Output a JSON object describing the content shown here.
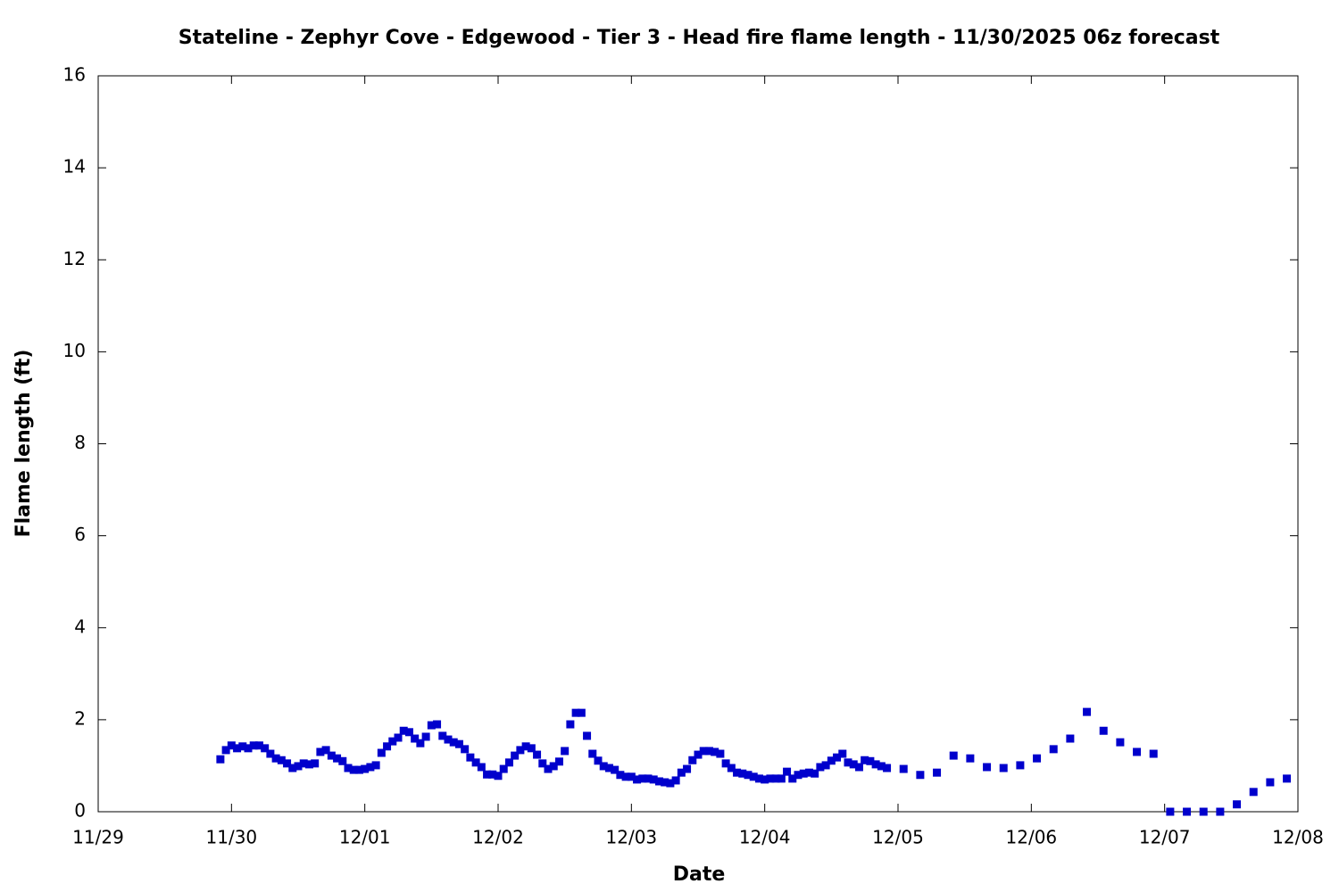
{
  "chart_data": {
    "type": "scatter",
    "title": "Stateline - Zephyr Cove - Edgewood - Tier 3 - Head fire flame length - 11/30/2025 06z forecast",
    "x_label": "Date",
    "y_label": "Flame length (ft)",
    "color": "#0000cc",
    "xlim": [
      0,
      216
    ],
    "xticks": [
      {
        "value": 0,
        "label": "11/29"
      },
      {
        "value": 24,
        "label": "11/30"
      },
      {
        "value": 48,
        "label": "12/01"
      },
      {
        "value": 72,
        "label": "12/02"
      },
      {
        "value": 96,
        "label": "12/03"
      },
      {
        "value": 120,
        "label": "12/04"
      },
      {
        "value": 144,
        "label": "12/05"
      },
      {
        "value": 168,
        "label": "12/06"
      },
      {
        "value": 192,
        "label": "12/07"
      },
      {
        "value": 216,
        "label": "12/08"
      }
    ],
    "ylim": [
      0,
      16
    ],
    "yticks": [
      0,
      2,
      4,
      6,
      8,
      10,
      12,
      14,
      16
    ],
    "x": [
      22,
      23,
      24,
      25,
      26,
      27,
      28,
      29,
      30,
      31,
      32,
      33,
      34,
      35,
      36,
      37,
      38,
      39,
      40,
      41,
      42,
      43,
      44,
      45,
      46,
      47,
      48,
      49,
      50,
      51,
      52,
      53,
      54,
      55,
      56,
      57,
      58,
      59,
      60,
      61,
      62,
      63,
      64,
      65,
      66,
      67,
      68,
      69,
      70,
      71,
      72,
      73,
      74,
      75,
      76,
      77,
      78,
      79,
      80,
      81,
      82,
      83,
      84,
      85,
      86,
      87,
      88,
      89,
      90,
      91,
      92,
      93,
      94,
      95,
      96,
      97,
      98,
      99,
      100,
      101,
      102,
      103,
      104,
      105,
      106,
      107,
      108,
      109,
      110,
      111,
      112,
      113,
      114,
      115,
      116,
      117,
      118,
      119,
      120,
      121,
      122,
      123,
      124,
      125,
      126,
      127,
      128,
      129,
      130,
      131,
      132,
      133,
      134,
      135,
      136,
      137,
      138,
      139,
      140,
      141,
      142,
      145,
      148,
      151,
      154,
      157,
      160,
      163,
      166,
      169,
      172,
      175,
      178,
      181,
      184,
      187,
      190,
      193,
      196,
      199,
      202,
      205,
      208,
      211,
      214
    ],
    "values": [
      1.14,
      1.34,
      1.44,
      1.38,
      1.42,
      1.38,
      1.44,
      1.44,
      1.38,
      1.26,
      1.16,
      1.12,
      1.05,
      0.95,
      0.99,
      1.05,
      1.03,
      1.05,
      1.3,
      1.34,
      1.22,
      1.16,
      1.1,
      0.95,
      0.91,
      0.91,
      0.93,
      0.97,
      1.01,
      1.28,
      1.42,
      1.53,
      1.61,
      1.76,
      1.73,
      1.59,
      1.49,
      1.63,
      1.88,
      1.9,
      1.65,
      1.57,
      1.51,
      1.47,
      1.36,
      1.18,
      1.07,
      0.97,
      0.81,
      0.81,
      0.78,
      0.93,
      1.07,
      1.22,
      1.34,
      1.42,
      1.38,
      1.24,
      1.05,
      0.93,
      0.99,
      1.09,
      1.32,
      1.9,
      2.15,
      2.15,
      1.65,
      1.26,
      1.11,
      0.99,
      0.95,
      0.91,
      0.8,
      0.76,
      0.76,
      0.7,
      0.72,
      0.72,
      0.7,
      0.66,
      0.64,
      0.62,
      0.68,
      0.85,
      0.93,
      1.12,
      1.24,
      1.32,
      1.32,
      1.3,
      1.26,
      1.05,
      0.95,
      0.85,
      0.83,
      0.8,
      0.76,
      0.72,
      0.7,
      0.72,
      0.72,
      0.72,
      0.87,
      0.72,
      0.8,
      0.83,
      0.85,
      0.83,
      0.97,
      1.01,
      1.11,
      1.18,
      1.26,
      1.07,
      1.03,
      0.97,
      1.12,
      1.1,
      1.03,
      0.99,
      0.95,
      0.93,
      0.8,
      0.85,
      1.22,
      1.16,
      0.97,
      0.95,
      1.01,
      1.16,
      1.36,
      1.59,
      2.17,
      1.76,
      1.51,
      1.3,
      1.26,
      0,
      0,
      0,
      0,
      0.16,
      0.43,
      0.64,
      0.72
    ]
  }
}
